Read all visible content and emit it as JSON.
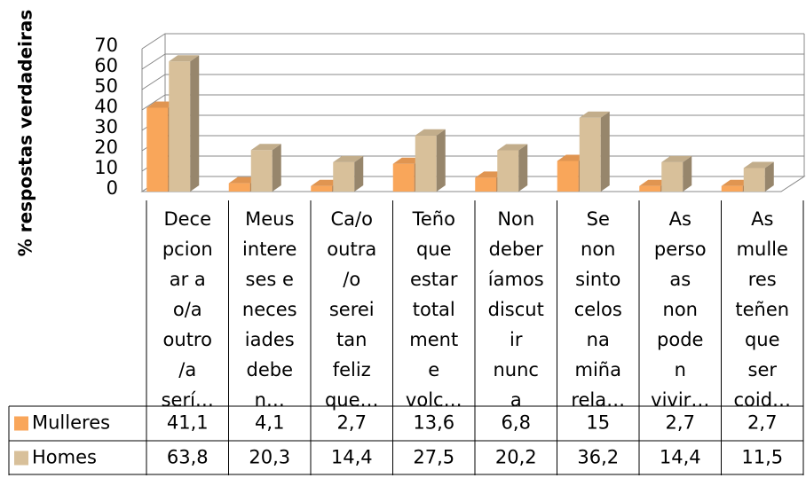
{
  "chart_data": {
    "type": "bar3d",
    "y_axis_label": "% respostas verdadeiras",
    "categories": [
      [
        "Dece",
        "pcion",
        "ar a",
        "o/a",
        "outro",
        "/a",
        "serí…"
      ],
      [
        "Meus",
        "intere",
        "ses e",
        "neces",
        "iades",
        "debe",
        "n…"
      ],
      [
        "Ca/o",
        "outra",
        "/o",
        "serei",
        "tan",
        "feliz",
        "que…"
      ],
      [
        "Teño",
        "que",
        "estar",
        "total",
        "ment",
        "e",
        "volc…"
      ],
      [
        "Non",
        "deber",
        "íamos",
        "discut",
        "ir",
        "nunc",
        "a"
      ],
      [
        "Se",
        "non",
        "sinto",
        "celos",
        "na",
        "miña",
        "rela…"
      ],
      [
        "As",
        "perso",
        "as",
        "non",
        "pode",
        "n",
        "vivir…"
      ],
      [
        "As",
        "mulle",
        "res",
        "teñen",
        "que",
        "ser",
        "coid…"
      ]
    ],
    "series": [
      {
        "name": "Mulleres",
        "color": "#f9a65a",
        "values": [
          41.1,
          4.1,
          2.7,
          13.6,
          6.8,
          15,
          2.7,
          2.7
        ],
        "value_labels": [
          "41,1",
          "4,1",
          "2,7",
          "13,6",
          "6,8",
          "15",
          "2,7",
          "2,7"
        ]
      },
      {
        "name": "Homes",
        "color": "#d8c09a",
        "values": [
          63.8,
          20.3,
          14.4,
          27.5,
          20.2,
          36.2,
          14.4,
          11.5
        ],
        "value_labels": [
          "63,8",
          "20,3",
          "14,4",
          "27,5",
          "20,2",
          "36,2",
          "14,4",
          "11,5"
        ]
      }
    ],
    "ylim": [
      0,
      70
    ],
    "yticks": [
      0,
      10,
      20,
      30,
      40,
      50,
      60,
      70
    ],
    "grid": true
  }
}
